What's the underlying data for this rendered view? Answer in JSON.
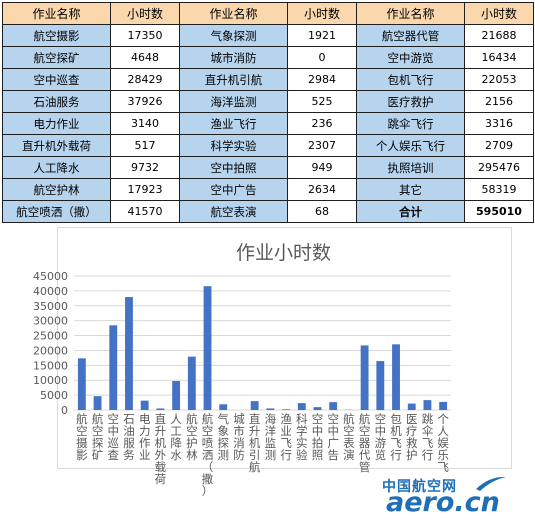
{
  "table": {
    "header": [
      "作业名称",
      "小时数",
      "作业名称",
      "小时数",
      "作业名称",
      "小时数"
    ],
    "rows": [
      [
        "航空摄影",
        "17350",
        "气象探测",
        "1921",
        "航空器代管",
        "21688"
      ],
      [
        "航空探矿",
        "4648",
        "城市消防",
        "0",
        "空中游览",
        "16434"
      ],
      [
        "空中巡查",
        "28429",
        "直升机引航",
        "2984",
        "包机飞行",
        "22053"
      ],
      [
        "石油服务",
        "37926",
        "海洋监测",
        "525",
        "医疗救护",
        "2156"
      ],
      [
        "电力作业",
        "3140",
        "渔业飞行",
        "236",
        "跳伞飞行",
        "3316"
      ],
      [
        "直升机外载荷",
        "517",
        "科学实验",
        "2307",
        "个人娱乐飞行",
        "2709"
      ],
      [
        "人工降水",
        "9732",
        "空中拍照",
        "949",
        "执照培训",
        "295476"
      ],
      [
        "航空护林",
        "17923",
        "空中广告",
        "2634",
        "其它",
        "58319"
      ],
      [
        "航空喷洒（撒）",
        "41570",
        "航空表演",
        "68",
        "合计",
        "595010"
      ]
    ]
  },
  "colors": {
    "header_bg": "#fad7ad",
    "name_bg": "#b7d4ef",
    "bar": "#4472c4",
    "grid": "#d9d9d9",
    "text": "#595959",
    "watermark": "#1f6fb8"
  },
  "chart_data": {
    "type": "bar",
    "title": "作业小时数",
    "xlabel": "",
    "ylabel": "",
    "ylim": [
      0,
      45000
    ],
    "yticks": [
      0,
      5000,
      10000,
      15000,
      20000,
      25000,
      30000,
      35000,
      40000,
      45000
    ],
    "grid": true,
    "categories": [
      "航空摄影",
      "航空探矿",
      "空中巡查",
      "石油服务",
      "电力作业",
      "直升机外载荷",
      "人工降水",
      "航空护林",
      "航空喷洒（撒）",
      "气象探测",
      "城市消防",
      "直升机引航",
      "海洋监测",
      "渔业飞行",
      "科学实验",
      "空中拍照",
      "空中广告",
      "航空表演",
      "航空器代管",
      "空中游览",
      "包机飞行",
      "医疗救护",
      "跳伞飞行",
      "个人娱乐飞"
    ],
    "values": [
      17350,
      4648,
      28429,
      37926,
      3140,
      517,
      9732,
      17923,
      41570,
      1921,
      0,
      2984,
      525,
      236,
      2307,
      949,
      2634,
      68,
      21688,
      16434,
      22053,
      2156,
      3316,
      2709
    ]
  },
  "watermark": {
    "cn": "中国航空网",
    "en": "aero.cn"
  }
}
